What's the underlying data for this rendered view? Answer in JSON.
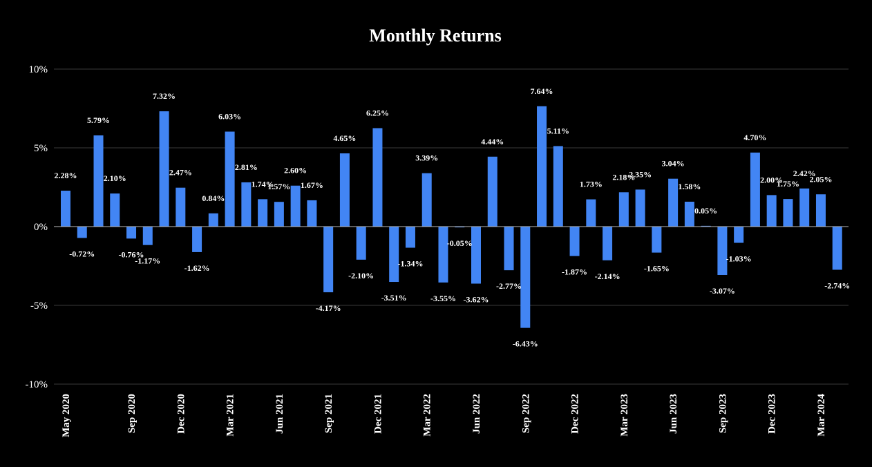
{
  "chart_data": {
    "type": "bar",
    "title": "Monthly Returns",
    "xlabel": "",
    "ylabel": "",
    "ylim": [
      -10,
      10
    ],
    "yticks": [
      10,
      5,
      0,
      -5,
      -10
    ],
    "ytick_labels": [
      "10%",
      "5%",
      "0%",
      "-5%",
      "-10%"
    ],
    "bar_color": "#4285f4",
    "background": "#000000",
    "grid": true,
    "legend": "none",
    "categories": [
      "May 2020",
      "Jun 2020",
      "Jul 2020",
      "Aug 2020",
      "Sep 2020",
      "Oct 2020",
      "Nov 2020",
      "Dec 2020",
      "Jan 2021",
      "Feb 2021",
      "Mar 2021",
      "Apr 2021",
      "May 2021",
      "Jun 2021",
      "Jul 2021",
      "Aug 2021",
      "Sep 2021",
      "Oct 2021",
      "Nov 2021",
      "Dec 2021",
      "Jan 2022",
      "Feb 2022",
      "Mar 2022",
      "Apr 2022",
      "May 2022",
      "Jun 2022",
      "Jul 2022",
      "Aug 2022",
      "Sep 2022",
      "Oct 2022",
      "Nov 2022",
      "Dec 2022",
      "Jan 2023",
      "Feb 2023",
      "Mar 2023",
      "Apr 2023",
      "May 2023",
      "Jun 2023",
      "Jul 2023",
      "Aug 2023",
      "Sep 2023",
      "Oct 2023",
      "Nov 2023",
      "Dec 2023",
      "Jan 2024",
      "Feb 2024",
      "Mar 2024",
      "Apr 2024"
    ],
    "values": [
      2.28,
      -0.72,
      5.79,
      2.1,
      -0.76,
      -1.17,
      7.32,
      2.47,
      -1.62,
      0.84,
      6.03,
      2.81,
      1.74,
      1.57,
      2.6,
      1.67,
      -4.17,
      4.65,
      -2.1,
      6.25,
      -3.51,
      -1.34,
      3.39,
      -3.55,
      -0.05,
      -3.62,
      4.44,
      -2.77,
      -6.43,
      7.64,
      5.11,
      -1.87,
      1.73,
      -2.14,
      2.18,
      2.35,
      -1.65,
      3.04,
      1.58,
      0.05,
      -3.07,
      -1.03,
      4.7,
      2.0,
      1.75,
      2.42,
      2.05,
      -2.74
    ],
    "data_labels": [
      "2.28%",
      "-0.72%",
      "5.79%",
      "2.10%",
      "-0.76%",
      "-1.17%",
      "7.32%",
      "2.47%",
      "-1.62%",
      "0.84%",
      "6.03%",
      "2.81%",
      "1.74%",
      "1.57%",
      "2.60%",
      "1.67%",
      "-4.17%",
      "4.65%",
      "-2.10%",
      "6.25%",
      "-3.51%",
      "-1.34%",
      "3.39%",
      "-3.55%",
      "-0.05%",
      "-3.62%",
      "4.44%",
      "-2.77%",
      "-6.43%",
      "7.64%",
      "5.11%",
      "-1.87%",
      "1.73%",
      "-2.14%",
      "2.18%",
      "2.35%",
      "-1.65%",
      "3.04%",
      "1.58%",
      "0.05%",
      "-3.07%",
      "-1.03%",
      "4.70%",
      "2.00%",
      "1.75%",
      "2.42%",
      "2.05%",
      "-2.74%"
    ],
    "x_tick_labels": [
      "May 2020",
      "Sep 2020",
      "Dec 2020",
      "Mar 2021",
      "Jun 2021",
      "Sep 2021",
      "Dec 2021",
      "Mar 2022",
      "Jun 2022",
      "Sep 2022",
      "Dec 2022",
      "Mar 2023",
      "Jun 2023",
      "Sep 2023",
      "Dec 2023",
      "Mar 2024"
    ],
    "x_tick_categories": [
      "May 2020",
      "Sep 2020",
      "Dec 2020",
      "Mar 2021",
      "Jun 2021",
      "Sep 2021",
      "Dec 2021",
      "Mar 2022",
      "Jun 2022",
      "Sep 2022",
      "Dec 2022",
      "Mar 2023",
      "Jun 2023",
      "Sep 2023",
      "Dec 2023",
      "Mar 2024"
    ]
  }
}
